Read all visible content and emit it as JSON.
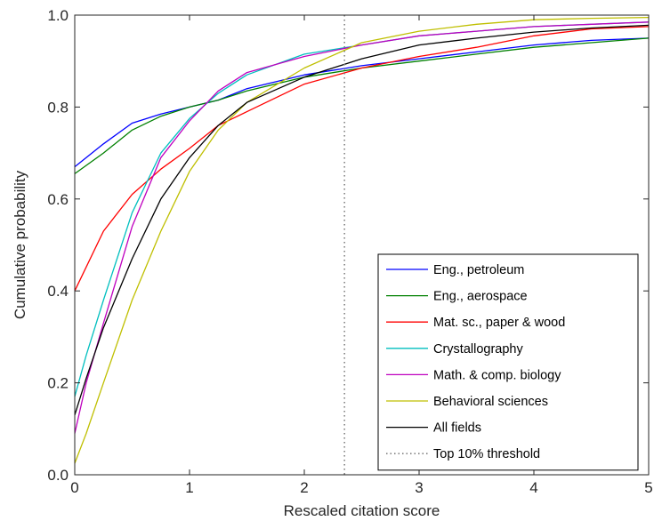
{
  "chart_data": {
    "type": "line",
    "title": "",
    "xlabel": "Rescaled citation score",
    "ylabel": "Cumulative probability",
    "xlim": [
      0,
      5
    ],
    "ylim": [
      0,
      1
    ],
    "x_ticks": [
      "0",
      "1",
      "2",
      "3",
      "4",
      "5"
    ],
    "y_ticks": [
      "0.0",
      "0.2",
      "0.4",
      "0.6",
      "0.8",
      "1.0"
    ],
    "grid": false,
    "legend_position": "bottom-right",
    "threshold": {
      "name": "Top 10% threshold",
      "x": 2.35,
      "color": "#808080",
      "style": "dotted"
    },
    "series": [
      {
        "name": "Eng., petroleum",
        "color": "#0000ff",
        "x": [
          0,
          0.25,
          0.5,
          0.75,
          1,
          1.25,
          1.5,
          2,
          2.5,
          3,
          3.5,
          4,
          4.5,
          5
        ],
        "y": [
          0.67,
          0.72,
          0.765,
          0.785,
          0.8,
          0.815,
          0.84,
          0.87,
          0.89,
          0.905,
          0.92,
          0.935,
          0.945,
          0.95
        ]
      },
      {
        "name": "Eng., aerospace",
        "color": "#008000",
        "x": [
          0,
          0.25,
          0.5,
          0.75,
          1,
          1.25,
          1.5,
          2,
          2.5,
          3,
          3.5,
          4,
          4.5,
          5
        ],
        "y": [
          0.655,
          0.7,
          0.75,
          0.78,
          0.8,
          0.815,
          0.835,
          0.865,
          0.885,
          0.9,
          0.915,
          0.93,
          0.94,
          0.95
        ]
      },
      {
        "name": "Mat. sc., paper & wood",
        "color": "#ff0000",
        "x": [
          0,
          0.25,
          0.5,
          0.75,
          1,
          1.25,
          1.5,
          2,
          2.5,
          3,
          3.5,
          4,
          4.5,
          5
        ],
        "y": [
          0.4,
          0.53,
          0.61,
          0.665,
          0.71,
          0.76,
          0.79,
          0.85,
          0.885,
          0.91,
          0.93,
          0.955,
          0.97,
          0.975
        ]
      },
      {
        "name": "Crystallography",
        "color": "#00bfbf",
        "x": [
          0,
          0.1,
          0.25,
          0.5,
          0.75,
          1,
          1.25,
          1.5,
          2,
          2.5,
          3,
          3.5,
          4,
          4.5,
          5
        ],
        "y": [
          0.17,
          0.26,
          0.38,
          0.57,
          0.7,
          0.775,
          0.83,
          0.87,
          0.915,
          0.935,
          0.955,
          0.965,
          0.975,
          0.98,
          0.985
        ]
      },
      {
        "name": "Math. & comp. biology",
        "color": "#bf00bf",
        "x": [
          0,
          0.1,
          0.25,
          0.5,
          0.75,
          1,
          1.25,
          1.5,
          2,
          2.5,
          3,
          3.5,
          4,
          4.5,
          5
        ],
        "y": [
          0.09,
          0.2,
          0.33,
          0.54,
          0.69,
          0.77,
          0.835,
          0.875,
          0.91,
          0.935,
          0.955,
          0.965,
          0.975,
          0.98,
          0.985
        ]
      },
      {
        "name": "Behavioral sciences",
        "color": "#bfbf00",
        "x": [
          0,
          0.1,
          0.25,
          0.5,
          0.75,
          1,
          1.25,
          1.5,
          2,
          2.5,
          3,
          3.5,
          4,
          4.5,
          5
        ],
        "y": [
          0.025,
          0.09,
          0.2,
          0.38,
          0.53,
          0.66,
          0.75,
          0.81,
          0.885,
          0.94,
          0.965,
          0.98,
          0.99,
          0.993,
          0.995
        ]
      },
      {
        "name": "All fields",
        "color": "#000000",
        "x": [
          0,
          0.1,
          0.25,
          0.5,
          0.75,
          1,
          1.25,
          1.5,
          2,
          2.5,
          3,
          3.5,
          4,
          4.5,
          5
        ],
        "y": [
          0.13,
          0.21,
          0.32,
          0.47,
          0.6,
          0.69,
          0.76,
          0.81,
          0.865,
          0.905,
          0.935,
          0.95,
          0.963,
          0.972,
          0.978
        ]
      }
    ]
  }
}
